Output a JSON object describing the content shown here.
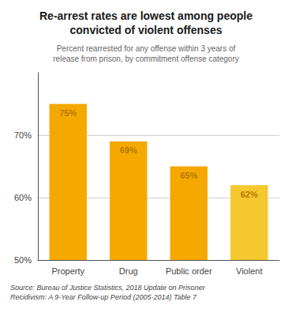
{
  "chart_data": {
    "type": "bar",
    "title": "Re-arrest rates are lowest among people\nconvicted of violent offenses",
    "subtitle": "Percent rearrested for any offense within 3 years of\nrelease from prison, by commitment offense category",
    "annotations": [
      "Source: Bureau of Justice Statistics, 2018 Update on Prisoner\nRecidivism: A 9-Year Follow-up Period (2005-2014) Table 7"
    ],
    "categories": [
      "Property",
      "Drug",
      "Public order",
      "Violent"
    ],
    "values": [
      75,
      69,
      65,
      62
    ],
    "value_labels": [
      "75%",
      "69%",
      "65%",
      "62%"
    ],
    "colors": [
      "#F5A800",
      "#F5A800",
      "#F5A800",
      "#F5C830"
    ],
    "ylim": [
      50,
      80
    ],
    "yticks": [
      {
        "value": 50,
        "label": "50%"
      },
      {
        "value": 60,
        "label": "60%"
      },
      {
        "value": 70,
        "label": "70%"
      }
    ],
    "grid": true,
    "data_labels": true
  }
}
